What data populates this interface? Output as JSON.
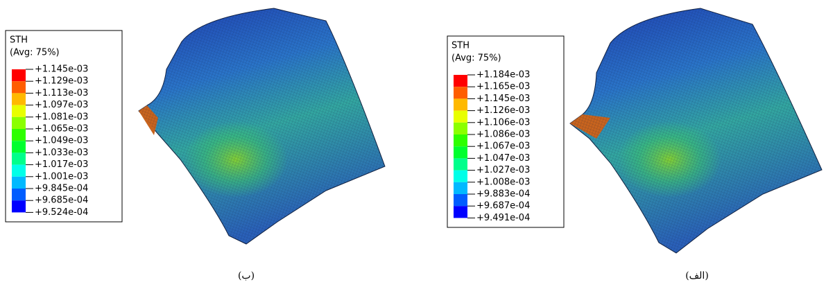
{
  "panels": [
    {
      "legend": {
        "title": "STH",
        "subtitle": "(Avg: 75%)",
        "labels": [
          "+1.145e-03",
          "+1.129e-03",
          "+1.113e-03",
          "+1.097e-03",
          "+1.081e-03",
          "+1.065e-03",
          "+1.049e-03",
          "+1.033e-03",
          "+1.017e-03",
          "+1.001e-03",
          "+9.845e-04",
          "+9.685e-04",
          "+9.524e-04"
        ]
      },
      "caption": "(ب)"
    },
    {
      "legend": {
        "title": "STH",
        "subtitle": "(Avg: 75%)",
        "labels": [
          "+1.184e-03",
          "+1.165e-03",
          "+1.145e-03",
          "+1.126e-03",
          "+1.106e-03",
          "+1.086e-03",
          "+1.067e-03",
          "+1.047e-03",
          "+1.027e-03",
          "+1.008e-03",
          "+9.883e-04",
          "+9.687e-04",
          "+9.491e-04"
        ]
      },
      "caption": "(الف)"
    }
  ]
}
